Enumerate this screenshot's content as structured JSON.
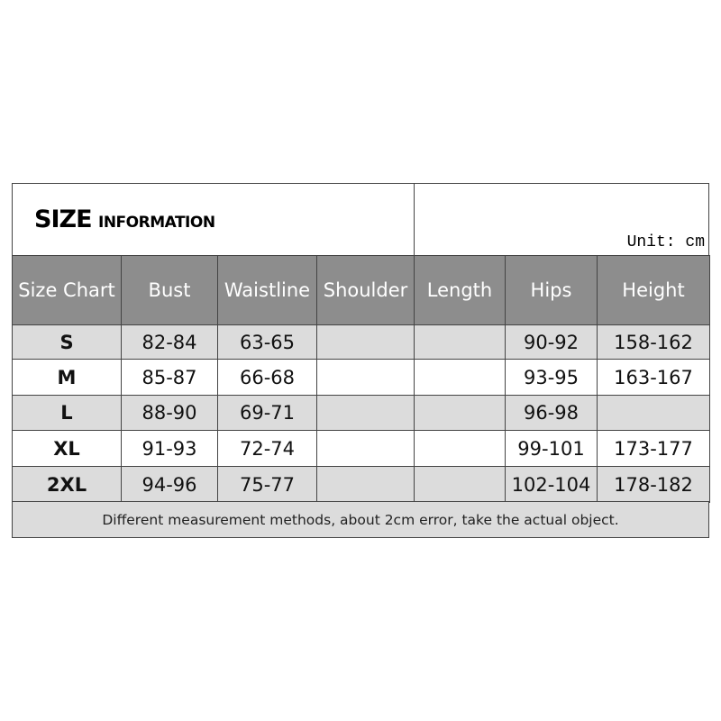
{
  "header": {
    "title_main": "SIZE",
    "title_sub": "INFORMATION",
    "unit": "Unit: cm"
  },
  "table": {
    "columns": [
      "Size Chart",
      "Bust",
      "Waistline",
      "Shoulder",
      "Length",
      "Hips",
      "Height"
    ],
    "rows": [
      [
        "S",
        "82-84",
        "63-65",
        null,
        null,
        "90-92",
        "158-162"
      ],
      [
        "M",
        "85-87",
        "66-68",
        null,
        null,
        "93-95",
        "163-167"
      ],
      [
        "L",
        "88-90",
        "69-71",
        null,
        null,
        "96-98",
        null
      ],
      [
        "XL",
        "91-93",
        "72-74",
        null,
        null,
        "99-101",
        "173-177"
      ],
      [
        "2XL",
        "94-96",
        "75-77",
        null,
        null,
        "102-104",
        "178-182"
      ]
    ]
  },
  "footer": {
    "note": "Different measurement methods, about 2cm error, take the actual object."
  }
}
